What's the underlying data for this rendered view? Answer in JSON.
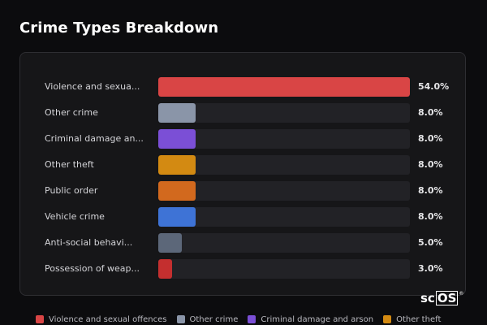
{
  "title": "Crime Types Breakdown",
  "colors": {
    "background": "#0c0c0e",
    "panel": "#161618",
    "track": "#222226"
  },
  "watermark": {
    "prefix": "sc",
    "boxed": "OS",
    "mark": "®"
  },
  "chart_data": {
    "type": "bar",
    "orientation": "horizontal",
    "title": "Crime Types Breakdown",
    "xlim": [
      0,
      54
    ],
    "grid": false,
    "legend_position": "bottom",
    "categories": [
      {
        "label": "Violence and sexua...",
        "full_name": "Violence and sexual offences",
        "value": 54.0,
        "display": "54.0%",
        "color": "#d94545"
      },
      {
        "label": "Other crime",
        "full_name": "Other crime",
        "value": 8.0,
        "display": "8.0%",
        "color": "#8a95a8"
      },
      {
        "label": "Criminal damage an...",
        "full_name": "Criminal damage and arson",
        "value": 8.0,
        "display": "8.0%",
        "color": "#7b4fd6"
      },
      {
        "label": "Other theft",
        "full_name": "Other theft",
        "value": 8.0,
        "display": "8.0%",
        "color": "#d38a12"
      },
      {
        "label": "Public order",
        "full_name": "Public order",
        "value": 8.0,
        "display": "8.0%",
        "color": "#d2691e"
      },
      {
        "label": "Vehicle crime",
        "full_name": "Vehicle crime",
        "value": 8.0,
        "display": "8.0%",
        "color": "#3e73d6"
      },
      {
        "label": "Anti-social behavi...",
        "full_name": "Anti-social behaviour",
        "value": 5.0,
        "display": "5.0%",
        "color": "#5c6779"
      },
      {
        "label": "Possession of weap...",
        "full_name": "Possession of weapons",
        "value": 3.0,
        "display": "3.0%",
        "color": "#c42f2f"
      }
    ],
    "legend": [
      {
        "label": "Violence and sexual offences",
        "color": "#d94545"
      },
      {
        "label": "Other crime",
        "color": "#8a95a8"
      },
      {
        "label": "Criminal damage and arson",
        "color": "#7b4fd6"
      },
      {
        "label": "Other theft",
        "color": "#d38a12"
      }
    ]
  }
}
